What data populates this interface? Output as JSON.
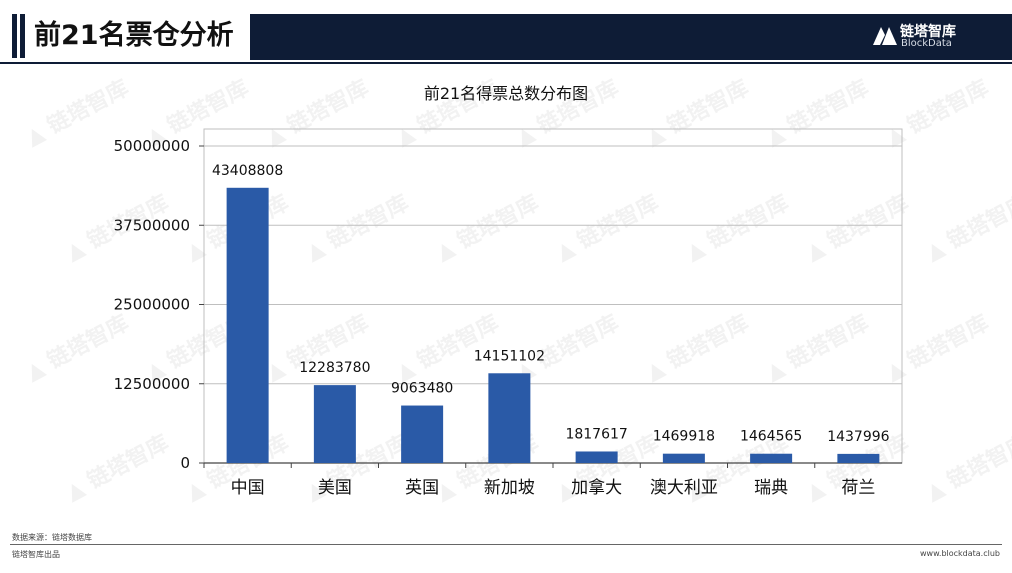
{
  "header": {
    "title": "前21名票仓分析",
    "logo_name": "链塔智库",
    "logo_sub": "BlockData"
  },
  "watermark_text": "链塔智库",
  "colors": {
    "bar": "#2a5aa7",
    "header_dark": "#0e1c36",
    "grid": "#bfbfbf"
  },
  "chart_data": {
    "type": "bar",
    "title": "前21名得票总数分布图",
    "categories": [
      "中国",
      "美国",
      "英国",
      "新加坡",
      "加拿大",
      "澳大利亚",
      "瑞典",
      "荷兰"
    ],
    "values": [
      43408808,
      12283780,
      9063480,
      14151102,
      1817617,
      1469918,
      1464565,
      1437996
    ],
    "data_labels": [
      "43408808",
      "12283780",
      "9063480",
      "14151102",
      "1817617",
      "1469918",
      "1464565",
      "1437996"
    ],
    "ylim": [
      0,
      50000000
    ],
    "yticks": [
      0,
      12500000,
      25000000,
      37500000,
      50000000
    ],
    "ytick_labels": [
      "0",
      "12500000",
      "25000000",
      "37500000",
      "50000000"
    ],
    "xlabel": "",
    "ylabel": "",
    "grid": true,
    "legend": "none"
  },
  "footer": {
    "source": "数据来源：链塔数据库",
    "left": "链塔智库出品",
    "right": "www.blockdata.club"
  }
}
